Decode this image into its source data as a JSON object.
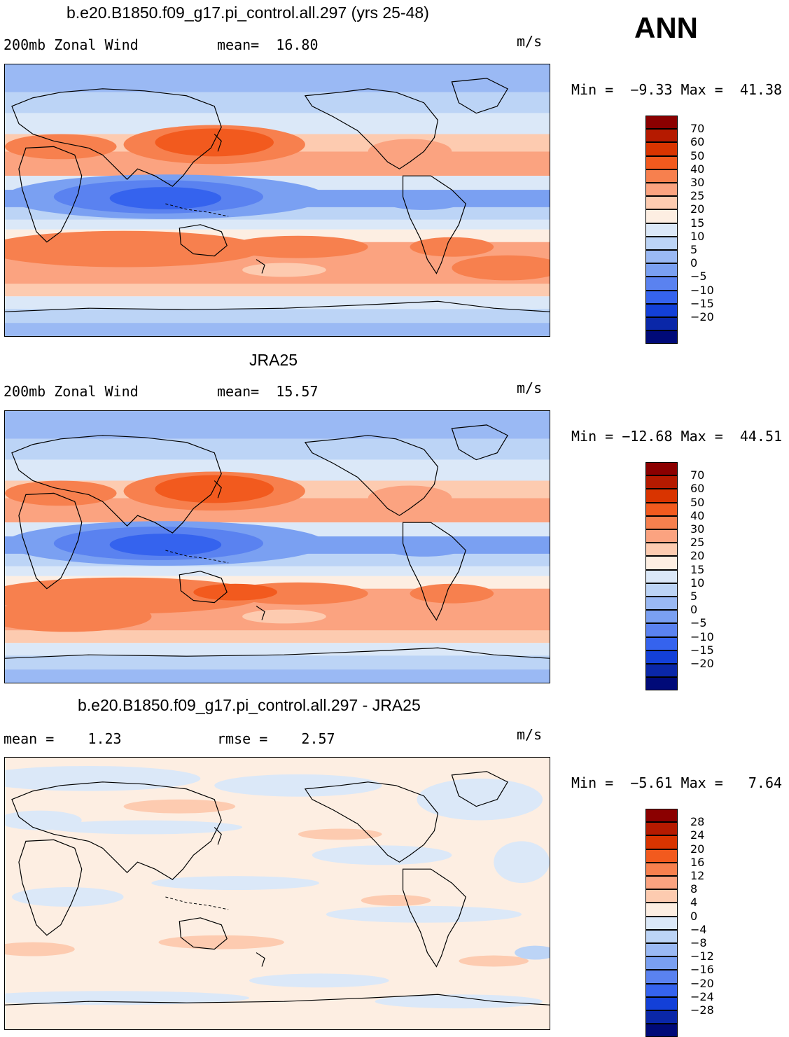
{
  "season": "ANN",
  "panels": [
    {
      "title": "b.e20.B1850.f09_g17.pi_control.all.297 (yrs 25-48)",
      "left_text": "200mb Zonal Wind",
      "mid_text": "mean=  16.80",
      "units": "m/s",
      "stats": "Min =  −9.33 Max =  41.38",
      "legend": {
        "labels": [
          "70",
          "60",
          "50",
          "40",
          "30",
          "25",
          "20",
          "15",
          "10",
          "5",
          "0",
          "−5",
          "−10",
          "−15",
          "−20"
        ],
        "colors": [
          "#8b0000",
          "#b51a00",
          "#d93400",
          "#f25a1e",
          "#f7804e",
          "#fba380",
          "#fdcbb0",
          "#fdeee2",
          "#dbe8f8",
          "#bcd4f6",
          "#9ab9f4",
          "#7aa0f2",
          "#5a82f0",
          "#3563ee",
          "#1340d8",
          "#0a27a8",
          "#000a78"
        ]
      },
      "map_type": "model"
    },
    {
      "title": "JRA25",
      "left_text": "200mb Zonal Wind",
      "mid_text": "mean=  15.57",
      "units": "m/s",
      "stats": "Min = −12.68 Max =  44.51",
      "legend": {
        "labels": [
          "70",
          "60",
          "50",
          "40",
          "30",
          "25",
          "20",
          "15",
          "10",
          "5",
          "0",
          "−5",
          "−10",
          "−15",
          "−20"
        ],
        "colors": [
          "#8b0000",
          "#b51a00",
          "#d93400",
          "#f25a1e",
          "#f7804e",
          "#fba380",
          "#fdcbb0",
          "#fdeee2",
          "#dbe8f8",
          "#bcd4f6",
          "#9ab9f4",
          "#7aa0f2",
          "#5a82f0",
          "#3563ee",
          "#1340d8",
          "#0a27a8",
          "#000a78"
        ]
      },
      "map_type": "obs"
    },
    {
      "title": "b.e20.B1850.f09_g17.pi_control.all.297 - JRA25",
      "left_text": "mean =    1.23",
      "mid_text": "rmse =    2.57",
      "units": "m/s",
      "stats": "Min =  −5.61 Max =   7.64",
      "legend": {
        "labels": [
          "28",
          "24",
          "20",
          "16",
          "12",
          "8",
          "4",
          "0",
          "−4",
          "−8",
          "−12",
          "−16",
          "−20",
          "−24",
          "−28"
        ],
        "colors": [
          "#8b0000",
          "#b51a00",
          "#d93400",
          "#f25a1e",
          "#f7804e",
          "#fba380",
          "#fdcbb0",
          "#fdeee2",
          "#dbe8f8",
          "#bcd4f6",
          "#9ab9f4",
          "#7aa0f2",
          "#5a82f0",
          "#3563ee",
          "#1340d8",
          "#0a27a8",
          "#000a78"
        ]
      },
      "map_type": "diff"
    }
  ]
}
